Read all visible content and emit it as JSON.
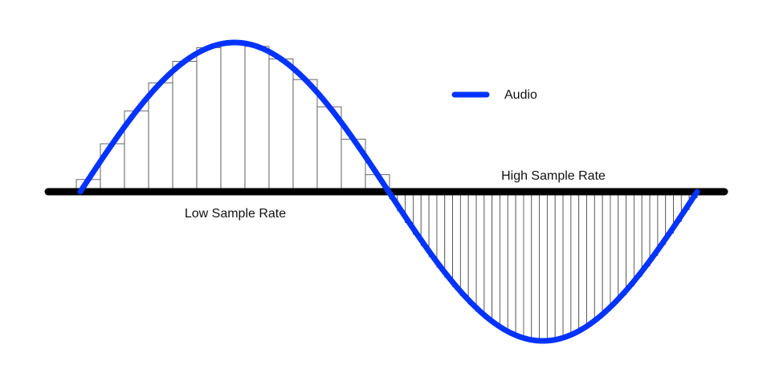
{
  "diagram": {
    "legend": {
      "label": "Audio",
      "color": "#0033ff"
    },
    "labels": {
      "low_rate": "Low Sample Rate",
      "high_rate": "High Sample Rate"
    },
    "colors": {
      "axis": "#000000",
      "sample_bar_stroke": "#555555",
      "sample_bar_fill": "#ffffff"
    },
    "wave": {
      "type": "sine",
      "cycles": 1
    },
    "low_rate_samples": 13,
    "high_rate_samples": 39
  }
}
